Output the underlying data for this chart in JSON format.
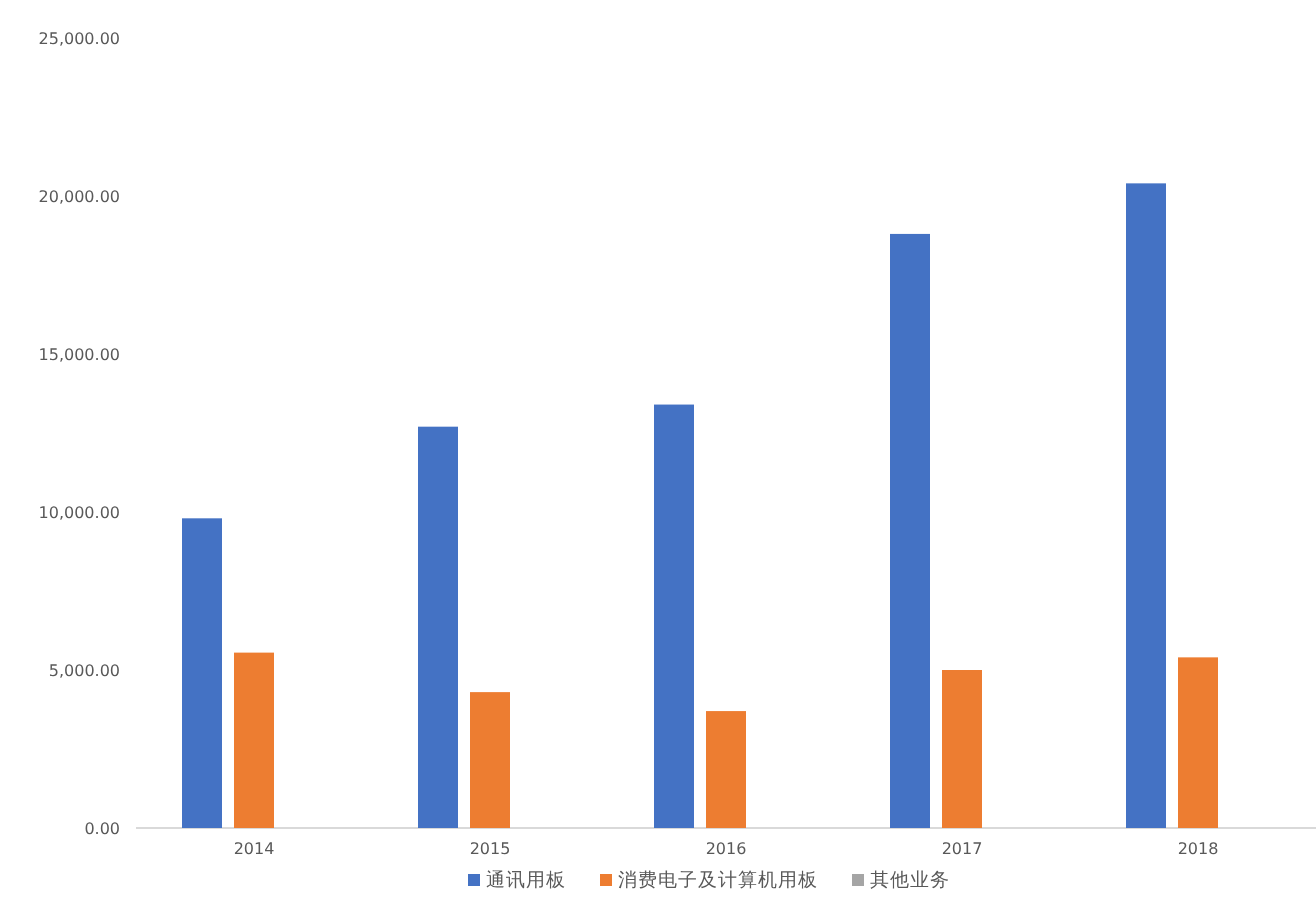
{
  "chart_data": {
    "type": "bar",
    "categories": [
      "2014",
      "2015",
      "2016",
      "2017",
      "2018"
    ],
    "series": [
      {
        "name": "通讯用板",
        "color": "#4472c4",
        "values": [
          9800,
          12700,
          13400,
          18800,
          20400
        ]
      },
      {
        "name": "消费电子及计算机用板",
        "color": "#ed7d31",
        "values": [
          5550,
          4300,
          3700,
          5000,
          5400
        ]
      },
      {
        "name": "其他业务",
        "color": "#a5a5a5",
        "values": [
          0,
          0,
          0,
          0,
          0
        ]
      }
    ],
    "ylim": [
      0,
      25000
    ],
    "yticks": [
      {
        "value": 0,
        "label": "0.00"
      },
      {
        "value": 5000,
        "label": "5,000.00"
      },
      {
        "value": 10000,
        "label": "10,000.00"
      },
      {
        "value": 15000,
        "label": "15,000.00"
      },
      {
        "value": 20000,
        "label": "20,000.00"
      },
      {
        "value": 25000,
        "label": "25,000.00"
      }
    ],
    "grid": false,
    "legend": "bottom"
  }
}
